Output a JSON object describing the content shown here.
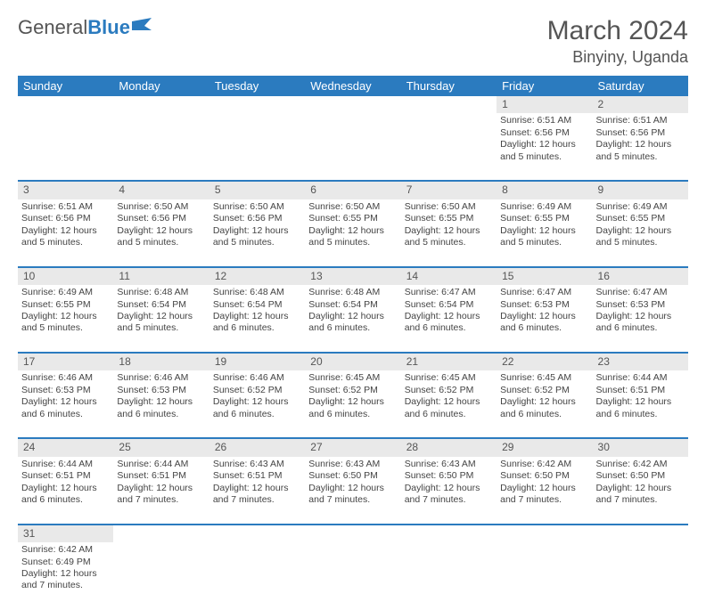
{
  "brand": {
    "name1": "General",
    "name2": "Blue"
  },
  "title": "March 2024",
  "location": "Binyiny, Uganda",
  "colors": {
    "header_bg": "#2b7bbf",
    "header_text": "#ffffff",
    "daynum_bg": "#e9e9e9",
    "rule": "#2b7bbf",
    "text": "#444444"
  },
  "weekdays": [
    "Sunday",
    "Monday",
    "Tuesday",
    "Wednesday",
    "Thursday",
    "Friday",
    "Saturday"
  ],
  "weeks": [
    [
      null,
      null,
      null,
      null,
      null,
      {
        "n": "1",
        "sr": "6:51 AM",
        "ss": "6:56 PM",
        "dh": "12",
        "dm": "5"
      },
      {
        "n": "2",
        "sr": "6:51 AM",
        "ss": "6:56 PM",
        "dh": "12",
        "dm": "5"
      }
    ],
    [
      {
        "n": "3",
        "sr": "6:51 AM",
        "ss": "6:56 PM",
        "dh": "12",
        "dm": "5"
      },
      {
        "n": "4",
        "sr": "6:50 AM",
        "ss": "6:56 PM",
        "dh": "12",
        "dm": "5"
      },
      {
        "n": "5",
        "sr": "6:50 AM",
        "ss": "6:56 PM",
        "dh": "12",
        "dm": "5"
      },
      {
        "n": "6",
        "sr": "6:50 AM",
        "ss": "6:55 PM",
        "dh": "12",
        "dm": "5"
      },
      {
        "n": "7",
        "sr": "6:50 AM",
        "ss": "6:55 PM",
        "dh": "12",
        "dm": "5"
      },
      {
        "n": "8",
        "sr": "6:49 AM",
        "ss": "6:55 PM",
        "dh": "12",
        "dm": "5"
      },
      {
        "n": "9",
        "sr": "6:49 AM",
        "ss": "6:55 PM",
        "dh": "12",
        "dm": "5"
      }
    ],
    [
      {
        "n": "10",
        "sr": "6:49 AM",
        "ss": "6:55 PM",
        "dh": "12",
        "dm": "5"
      },
      {
        "n": "11",
        "sr": "6:48 AM",
        "ss": "6:54 PM",
        "dh": "12",
        "dm": "5"
      },
      {
        "n": "12",
        "sr": "6:48 AM",
        "ss": "6:54 PM",
        "dh": "12",
        "dm": "6"
      },
      {
        "n": "13",
        "sr": "6:48 AM",
        "ss": "6:54 PM",
        "dh": "12",
        "dm": "6"
      },
      {
        "n": "14",
        "sr": "6:47 AM",
        "ss": "6:54 PM",
        "dh": "12",
        "dm": "6"
      },
      {
        "n": "15",
        "sr": "6:47 AM",
        "ss": "6:53 PM",
        "dh": "12",
        "dm": "6"
      },
      {
        "n": "16",
        "sr": "6:47 AM",
        "ss": "6:53 PM",
        "dh": "12",
        "dm": "6"
      }
    ],
    [
      {
        "n": "17",
        "sr": "6:46 AM",
        "ss": "6:53 PM",
        "dh": "12",
        "dm": "6"
      },
      {
        "n": "18",
        "sr": "6:46 AM",
        "ss": "6:53 PM",
        "dh": "12",
        "dm": "6"
      },
      {
        "n": "19",
        "sr": "6:46 AM",
        "ss": "6:52 PM",
        "dh": "12",
        "dm": "6"
      },
      {
        "n": "20",
        "sr": "6:45 AM",
        "ss": "6:52 PM",
        "dh": "12",
        "dm": "6"
      },
      {
        "n": "21",
        "sr": "6:45 AM",
        "ss": "6:52 PM",
        "dh": "12",
        "dm": "6"
      },
      {
        "n": "22",
        "sr": "6:45 AM",
        "ss": "6:52 PM",
        "dh": "12",
        "dm": "6"
      },
      {
        "n": "23",
        "sr": "6:44 AM",
        "ss": "6:51 PM",
        "dh": "12",
        "dm": "6"
      }
    ],
    [
      {
        "n": "24",
        "sr": "6:44 AM",
        "ss": "6:51 PM",
        "dh": "12",
        "dm": "6"
      },
      {
        "n": "25",
        "sr": "6:44 AM",
        "ss": "6:51 PM",
        "dh": "12",
        "dm": "7"
      },
      {
        "n": "26",
        "sr": "6:43 AM",
        "ss": "6:51 PM",
        "dh": "12",
        "dm": "7"
      },
      {
        "n": "27",
        "sr": "6:43 AM",
        "ss": "6:50 PM",
        "dh": "12",
        "dm": "7"
      },
      {
        "n": "28",
        "sr": "6:43 AM",
        "ss": "6:50 PM",
        "dh": "12",
        "dm": "7"
      },
      {
        "n": "29",
        "sr": "6:42 AM",
        "ss": "6:50 PM",
        "dh": "12",
        "dm": "7"
      },
      {
        "n": "30",
        "sr": "6:42 AM",
        "ss": "6:50 PM",
        "dh": "12",
        "dm": "7"
      }
    ],
    [
      {
        "n": "31",
        "sr": "6:42 AM",
        "ss": "6:49 PM",
        "dh": "12",
        "dm": "7"
      },
      null,
      null,
      null,
      null,
      null,
      null
    ]
  ]
}
